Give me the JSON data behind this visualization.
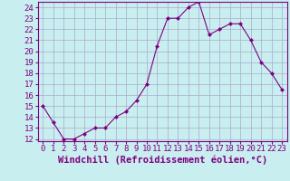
{
  "x": [
    0,
    1,
    2,
    3,
    4,
    5,
    6,
    7,
    8,
    9,
    10,
    11,
    12,
    13,
    14,
    15,
    16,
    17,
    18,
    19,
    20,
    21,
    22,
    23
  ],
  "y": [
    15.0,
    13.5,
    12.0,
    12.0,
    12.5,
    13.0,
    13.0,
    14.0,
    14.5,
    15.5,
    17.0,
    20.5,
    23.0,
    23.0,
    24.0,
    24.5,
    21.5,
    22.0,
    22.5,
    22.5,
    21.0,
    19.0,
    18.0,
    16.5
  ],
  "ylim_min": 11.8,
  "ylim_max": 24.5,
  "yticks": [
    12,
    13,
    14,
    15,
    16,
    17,
    18,
    19,
    20,
    21,
    22,
    23,
    24
  ],
  "xticks": [
    0,
    1,
    2,
    3,
    4,
    5,
    6,
    7,
    8,
    9,
    10,
    11,
    12,
    13,
    14,
    15,
    16,
    17,
    18,
    19,
    20,
    21,
    22,
    23
  ],
  "xlabel": "Windchill (Refroidissement éolien,°C)",
  "line_color": "#800080",
  "marker": "D",
  "marker_size": 2,
  "bg_color": "#c8eef0",
  "grid_color": "#aaaacc",
  "tick_label_fontsize": 6.5,
  "xlabel_fontsize": 7.5
}
